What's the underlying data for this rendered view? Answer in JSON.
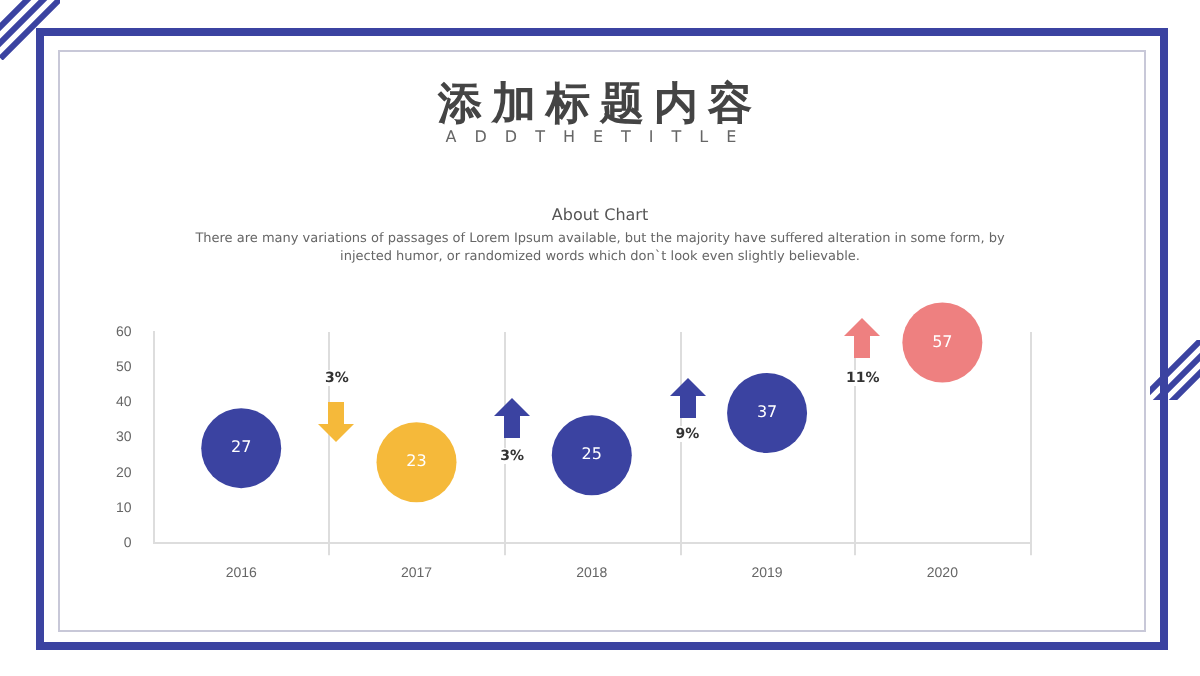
{
  "chart_data": {
    "type": "bubble",
    "title": "添加标题内容",
    "subtitle": "ADDTHETITLE",
    "annotations": [
      "About Chart",
      "There are many variations of passages of Lorem Ipsum available, but the majority have suffered alteration in some form, by injected humor, or randomized words which don`t look even slightly believable.",
      "3%",
      "3%",
      "9%",
      "11%"
    ],
    "categories": [
      "2016",
      "2017",
      "2018",
      "2019",
      "2020"
    ],
    "values": [
      27,
      23,
      25,
      37,
      57
    ],
    "sizes": [
      1,
      1,
      1,
      1,
      1
    ],
    "colors": [
      "#3b43a1",
      "#f5b93a",
      "#3b43a1",
      "#3b43a1",
      "#ee8080"
    ],
    "data_labels": true,
    "ylim": [
      0,
      60
    ],
    "yticks": [
      0,
      10,
      20,
      30,
      40,
      50,
      60
    ],
    "grid": "x",
    "legend": false
  }
}
